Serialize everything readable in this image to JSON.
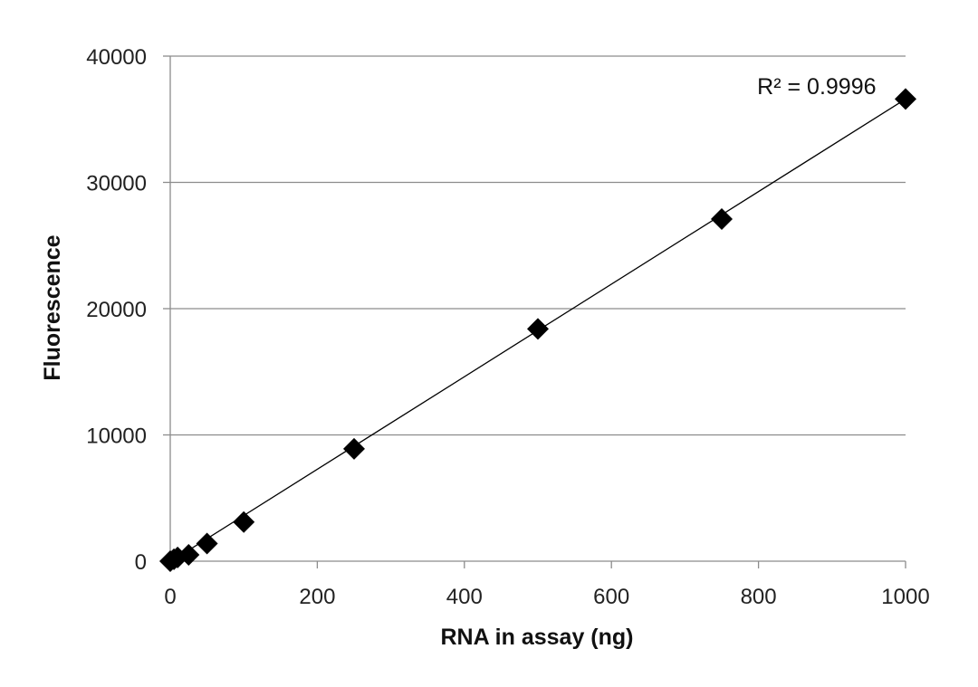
{
  "chart_data": {
    "type": "scatter",
    "xlabel": "RNA in assay (ng)",
    "ylabel": "Fluorescence",
    "xlim": [
      0,
      1000
    ],
    "ylim": [
      0,
      40000
    ],
    "x_ticks": [
      0,
      200,
      400,
      600,
      800,
      1000
    ],
    "y_ticks": [
      0,
      10000,
      20000,
      30000,
      40000
    ],
    "x_tick_labels": [
      "0",
      "200",
      "400",
      "600",
      "800",
      "1000"
    ],
    "y_tick_labels": [
      "0",
      "10000",
      "20000",
      "30000",
      "40000"
    ],
    "grid": "horizontal",
    "legend": "none",
    "marker": "diamond",
    "marker_color": "#000000",
    "series": [
      {
        "x": [
          0,
          5,
          10,
          25,
          50,
          100,
          250,
          500,
          750,
          1000
        ],
        "y": [
          0,
          150,
          300,
          500,
          1400,
          3100,
          8900,
          18400,
          27100,
          36600
        ]
      }
    ],
    "trendline": {
      "type": "linear",
      "x": [
        0,
        1000
      ],
      "y": [
        -50,
        36600
      ],
      "color": "#000000"
    },
    "annotations": [
      {
        "text": "R² = 0.9996",
        "x": 960,
        "y": 37000
      }
    ]
  }
}
